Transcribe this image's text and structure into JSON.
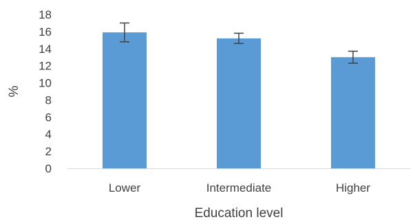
{
  "chart_data": {
    "type": "bar",
    "categories": [
      "Lower",
      "Intermediate",
      "Higher"
    ],
    "values": [
      15.9,
      15.2,
      13.0
    ],
    "error": [
      1.1,
      0.6,
      0.7
    ],
    "title": "",
    "xlabel": "Education level",
    "ylabel": "%",
    "ylim": [
      0,
      18
    ],
    "yticks": [
      0,
      2,
      4,
      6,
      8,
      10,
      12,
      14,
      16,
      18
    ],
    "grid": false,
    "legend": "none",
    "colors": {
      "bar": "#5b9bd5",
      "error_bar": "#404040",
      "axis": "#d9d9d9",
      "text": "#404040"
    }
  }
}
